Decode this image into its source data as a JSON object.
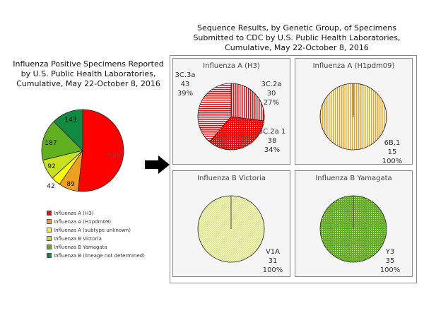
{
  "chart_data": [
    {
      "type": "pie",
      "title": "Influenza Positive Specimens Reported by U.S. Public Health Laboratories, Cumulative, May 22-October 8, 2016",
      "slices": [
        {
          "label": "Influenza A (H3)",
          "value": 595,
          "color": "#ff0000"
        },
        {
          "label": "Influenza A (H1pdm09)",
          "value": 89,
          "color": "#f0a020"
        },
        {
          "label": "Influenza A (subtype unknown)",
          "value": 42,
          "color": "#ffff00"
        },
        {
          "label": "Influenza B Victoria",
          "value": 92,
          "color": "#c8e020"
        },
        {
          "label": "Influenza B Yamagata",
          "value": 187,
          "color": "#60b020"
        },
        {
          "label": "Influenza B (lineage not determined)",
          "value": 143,
          "color": "#108a40"
        }
      ],
      "legend": "bottom"
    },
    {
      "type": "pie",
      "title": "Sequence Results, by Genetic Group, of Specimens Submitted to CDC by U.S. Public Health Laboratories, Cumulative, May 22-October 8, 2016",
      "panels": [
        {
          "title": "Influenza A (H3)",
          "slices": [
            {
              "label": "3C.2a",
              "value": 30,
              "percent": "27%",
              "color": "#ff0000",
              "pattern": "vertical"
            },
            {
              "label": "3C.2a 1",
              "value": 38,
              "percent": "34%",
              "color": "#ff0000",
              "pattern": "dots"
            },
            {
              "label": "3C.3a",
              "value": 43,
              "percent": "39%",
              "color": "#ff0000",
              "pattern": "horizontal"
            }
          ]
        },
        {
          "title": "Influenza A (H1pdm09)",
          "slices": [
            {
              "label": "6B.1",
              "value": 15,
              "percent": "100%",
              "color": "#f0a020",
              "pattern": "vertical"
            }
          ]
        },
        {
          "title": "Influenza B Victoria",
          "slices": [
            {
              "label": "V1A",
              "value": 31,
              "percent": "100%",
              "color": "#c8e020",
              "pattern": "diagonal"
            }
          ]
        },
        {
          "title": "Influenza B Yamagata",
          "slices": [
            {
              "label": "Y3",
              "value": 35,
              "percent": "100%",
              "color": "#60b020",
              "pattern": "dots"
            }
          ]
        }
      ]
    }
  ]
}
